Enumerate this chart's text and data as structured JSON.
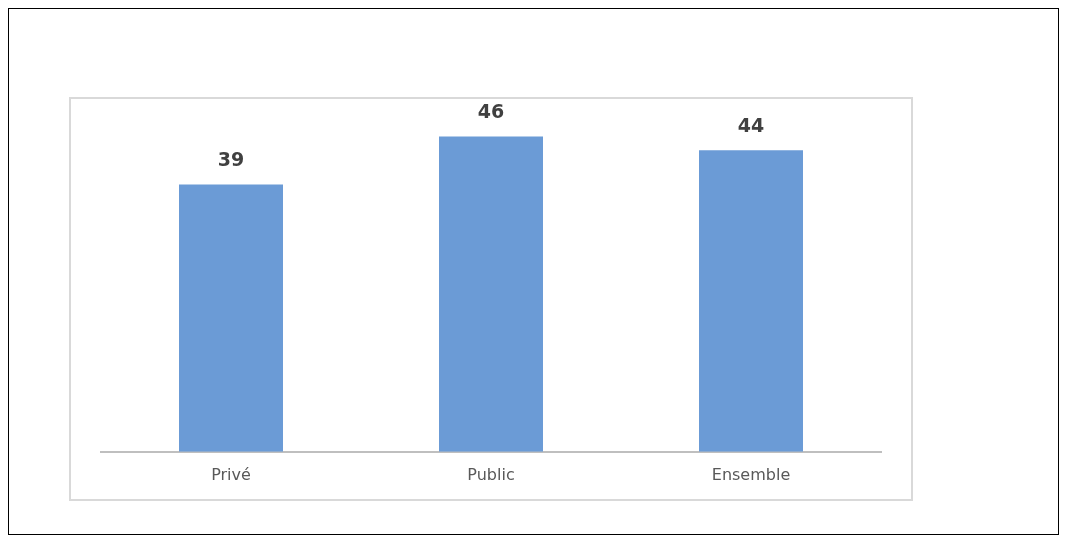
{
  "chart_data": {
    "type": "bar",
    "categories": [
      "Privé",
      "Public",
      "Ensemble"
    ],
    "values": [
      39,
      46,
      44
    ],
    "color": "#6b9bd6",
    "tick_labels": "x",
    "data_labels": true,
    "grid": false,
    "legend": false
  }
}
